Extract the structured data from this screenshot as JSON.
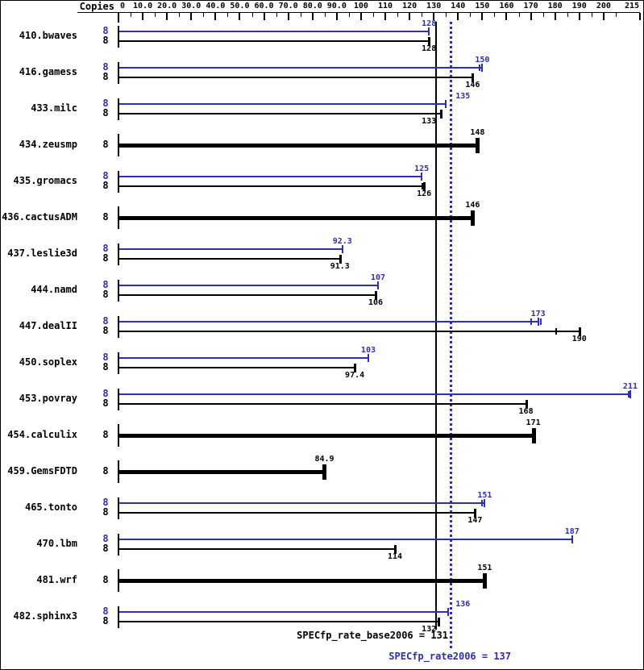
{
  "header": {
    "copies_label": "Copies"
  },
  "colors": {
    "peak_blue": "#2e2eb0",
    "base_black": "#000000",
    "background": "#ffffff"
  },
  "chart_data": {
    "type": "bar",
    "orientation": "horizontal",
    "title": "",
    "copies_column_label": "Copies",
    "value_axis": {
      "min": 0,
      "max": 215,
      "minor_step": 5,
      "major_ticks": [
        {
          "value": 0,
          "label": "0"
        },
        {
          "value": 10,
          "label": "10.0"
        },
        {
          "value": 20,
          "label": "20.0"
        },
        {
          "value": 30,
          "label": "30.0"
        },
        {
          "value": 40,
          "label": "40.0"
        },
        {
          "value": 50,
          "label": "50.0"
        },
        {
          "value": 60,
          "label": "60.0"
        },
        {
          "value": 70,
          "label": "70.0"
        },
        {
          "value": 80,
          "label": "80.0"
        },
        {
          "value": 90,
          "label": "90.0"
        },
        {
          "value": 100,
          "label": "100"
        },
        {
          "value": 110,
          "label": "110"
        },
        {
          "value": 120,
          "label": "120"
        },
        {
          "value": 130,
          "label": "130"
        },
        {
          "value": 140,
          "label": "140"
        },
        {
          "value": 150,
          "label": "150"
        },
        {
          "value": 160,
          "label": "160"
        },
        {
          "value": 170,
          "label": "170"
        },
        {
          "value": 180,
          "label": "180"
        },
        {
          "value": 190,
          "label": "190"
        },
        {
          "value": 200,
          "label": "200"
        },
        {
          "value": 215,
          "label": "215"
        }
      ]
    },
    "series": [
      {
        "name": "SPECfp_rate2006",
        "role": "peak",
        "color": "#2e2eb0"
      },
      {
        "name": "SPECfp_rate_base2006",
        "role": "base",
        "color": "#000000"
      }
    ],
    "benchmarks": [
      {
        "name": "410.bwaves",
        "copies": "8",
        "thick": false,
        "peak": 128,
        "peak_label": "128",
        "base": 128,
        "base_label": "128"
      },
      {
        "name": "416.gamess",
        "copies": "8",
        "thick": false,
        "peak": 150,
        "peak_label": "150",
        "peak_extra_ticks": [
          149.0
        ],
        "base": 146,
        "base_label": "146"
      },
      {
        "name": "433.milc",
        "copies": "8",
        "thick": false,
        "peak": 135,
        "peak_label": "135",
        "base": 133,
        "base_label": "133"
      },
      {
        "name": "434.zeusmp",
        "copies": "8",
        "thick": true,
        "peak": null,
        "peak_label": "",
        "base": 148,
        "base_label": "148"
      },
      {
        "name": "435.gromacs",
        "copies": "8",
        "thick": false,
        "peak": 125,
        "peak_label": "125",
        "base": 126,
        "base_label": "126",
        "base_extra_ticks": [
          125.2
        ]
      },
      {
        "name": "436.cactusADM",
        "copies": "8",
        "thick": true,
        "peak": null,
        "peak_label": "",
        "base": 146,
        "base_label": "146"
      },
      {
        "name": "437.leslie3d",
        "copies": "8",
        "thick": false,
        "peak": 92.3,
        "peak_label": "92.3",
        "base": 91.3,
        "base_label": "91.3"
      },
      {
        "name": "444.namd",
        "copies": "8",
        "thick": false,
        "peak": 107,
        "peak_label": "107",
        "base": 106,
        "base_label": "106"
      },
      {
        "name": "447.dealII",
        "copies": "8",
        "thick": false,
        "peak": 173,
        "peak_label": "173",
        "peak_extra_ticks": [
          170.2,
          174.0
        ],
        "base": 190,
        "base_label": "190",
        "base_extra_ticks": [
          180.5
        ]
      },
      {
        "name": "450.soplex",
        "copies": "8",
        "thick": false,
        "peak": 103,
        "peak_label": "103",
        "base": 97.4,
        "base_label": "97.4"
      },
      {
        "name": "453.povray",
        "copies": "8",
        "thick": false,
        "peak": 211,
        "peak_label": "211",
        "peak_extra_ticks": [
          210.4
        ],
        "base": 168,
        "base_label": "168"
      },
      {
        "name": "454.calculix",
        "copies": "8",
        "thick": true,
        "peak": null,
        "peak_label": "",
        "base": 171,
        "base_label": "171"
      },
      {
        "name": "459.GemsFDTD",
        "copies": "8",
        "thick": true,
        "peak": null,
        "peak_label": "",
        "base": 84.9,
        "base_label": "84.9"
      },
      {
        "name": "465.tonto",
        "copies": "8",
        "thick": false,
        "peak": 151,
        "peak_label": "151",
        "peak_extra_ticks": [
          150.0
        ],
        "base": 147,
        "base_label": "147"
      },
      {
        "name": "470.lbm",
        "copies": "8",
        "thick": false,
        "peak": 187,
        "peak_label": "187",
        "base": 114,
        "base_label": "114"
      },
      {
        "name": "481.wrf",
        "copies": "8",
        "thick": true,
        "peak": null,
        "peak_label": "",
        "base": 151,
        "base_label": "151"
      },
      {
        "name": "482.sphinx3",
        "copies": "8",
        "thick": false,
        "peak": 136,
        "peak_label": "136",
        "base": 132,
        "base_label": "132"
      }
    ],
    "means": {
      "base_value": 131,
      "base_text": "SPECfp_rate_base2006 = 131",
      "peak_value": 137,
      "peak_text": "SPECfp_rate2006 = 137"
    }
  }
}
